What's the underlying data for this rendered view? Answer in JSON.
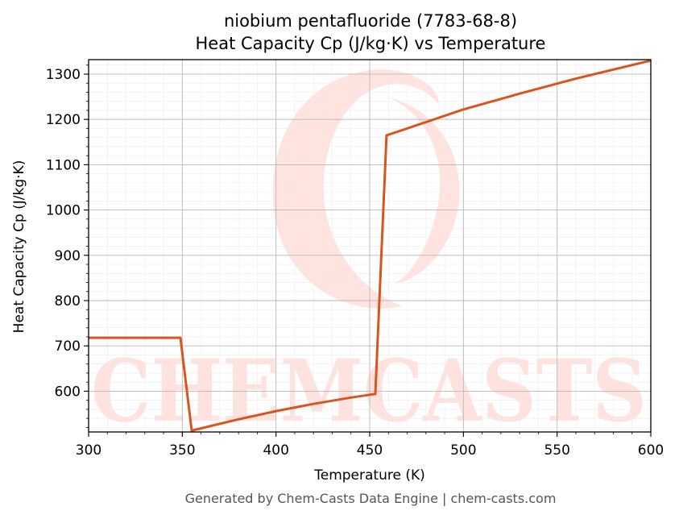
{
  "chart_data": {
    "type": "line",
    "title": "niobium pentafluoride (7783-68-8)",
    "subtitle": "Heat Capacity Cp (J/kg·K) vs Temperature",
    "xlabel": "Temperature (K)",
    "ylabel": "Heat Capacity Cp (J/kg·K)",
    "xlim": [
      300,
      600
    ],
    "ylim": [
      510,
      1332
    ],
    "xticks": [
      300,
      350,
      400,
      450,
      500,
      550,
      600
    ],
    "yticks": [
      600,
      700,
      800,
      900,
      1000,
      1100,
      1200,
      1300
    ],
    "grid": true,
    "line_color": "#d9541e",
    "series": [
      {
        "x": [
          300,
          349,
          355,
          380,
          400,
          420,
          440,
          453,
          459,
          470,
          500,
          530,
          560,
          600
        ],
        "values": [
          718,
          718,
          513,
          538,
          556,
          572,
          586,
          594,
          1165,
          1180,
          1222,
          1257,
          1290,
          1330
        ]
      }
    ]
  },
  "watermark": {
    "text": "CHEMCASTS",
    "color": "#ffd9d4"
  },
  "footer": "Generated by Chem-Casts Data Engine | chem-casts.com"
}
